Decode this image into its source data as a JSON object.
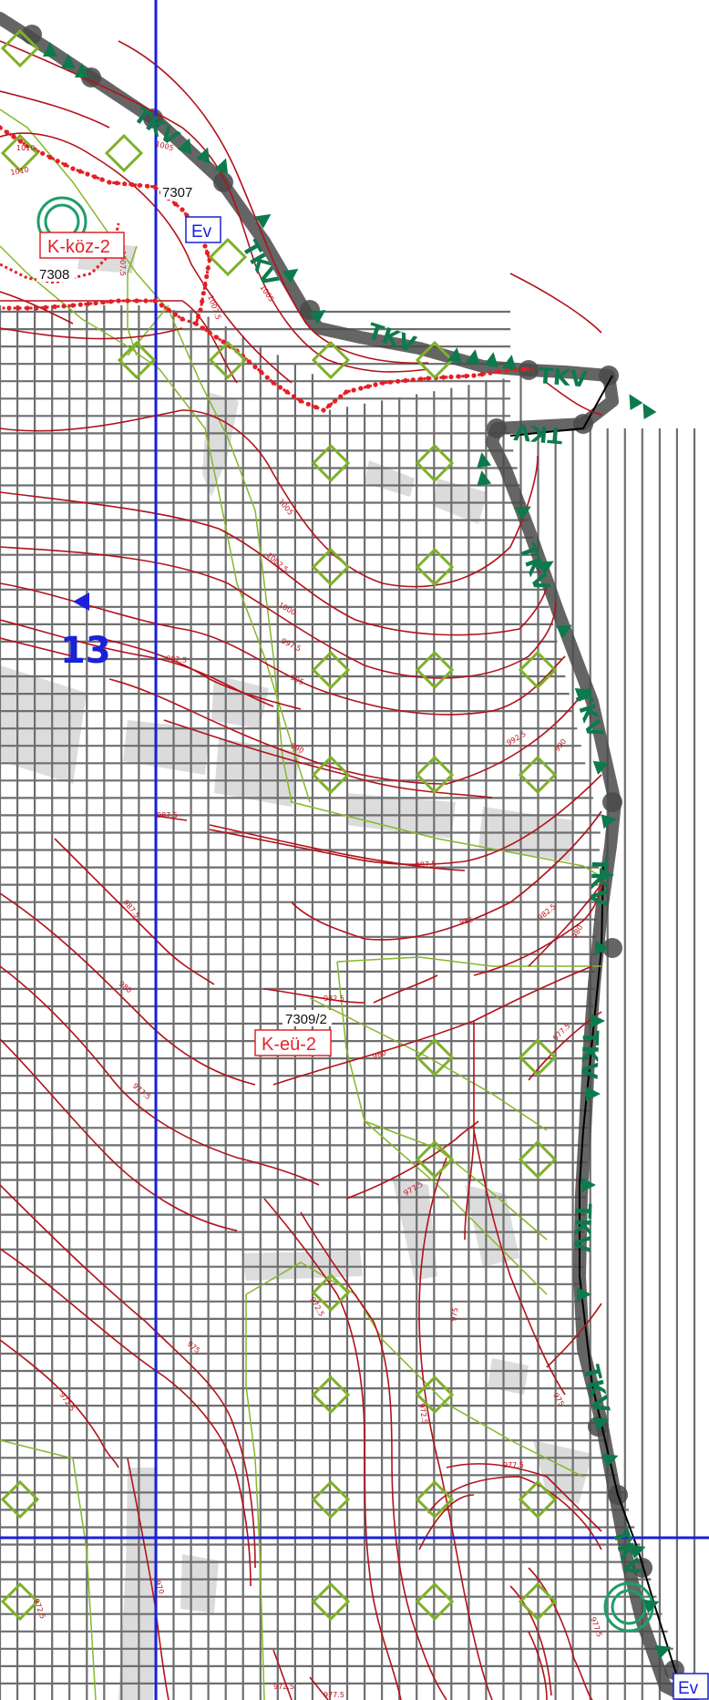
{
  "map": {
    "colors": {
      "background": "#ffffff",
      "grid": "#6e6e6e",
      "contour": "#b3121b",
      "contour_label": "#c3121c",
      "planned_boundary_red": "#e51e25",
      "sheet_line_blue": "#1a21d8",
      "green_line": "#86b72c",
      "diamond_symbol": "#7fb02a",
      "tkv_green": "#0c7a4d",
      "gray_band": "#555555",
      "building_gray": "#d8d8d8"
    },
    "icons": {
      "diamond": "diamond-symbol-icon",
      "circle": "double-circle-icon",
      "triangle": "direction-triangle-icon",
      "tkv": "tkv-hatch-icon"
    },
    "parcel_labels": [
      "7307",
      "7308",
      "7309/2"
    ],
    "zone_labels": [
      "K-köz-2",
      "K-eü-2"
    ],
    "ev_labels": [
      "Ev",
      "Ev"
    ],
    "sheet_number": "13",
    "tkv_text": "TKV",
    "contour_labels": [
      "1010",
      "1007.5",
      "1005",
      "1002.5",
      "1000",
      "997.5",
      "995",
      "992.5",
      "990",
      "987.5",
      "985",
      "982.5",
      "980",
      "977.5",
      "975",
      "972.5",
      "970"
    ]
  }
}
